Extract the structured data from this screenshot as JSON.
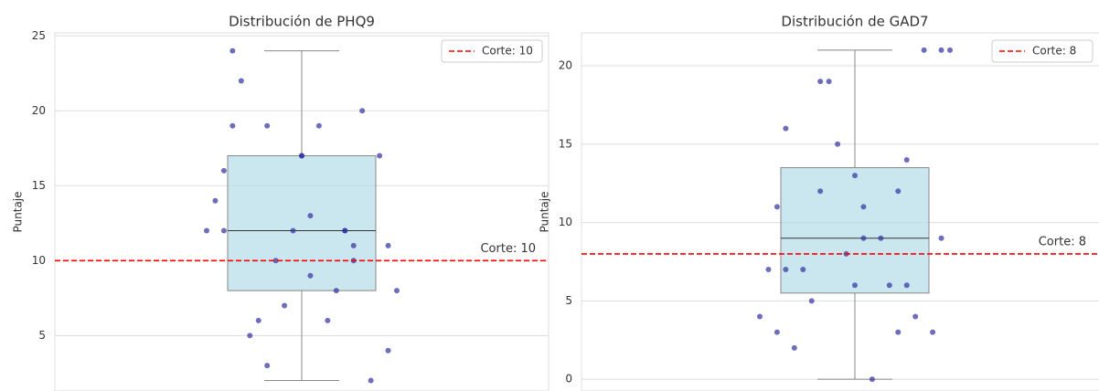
{
  "chart_data": [
    {
      "type": "box",
      "title": "Distribución de PHQ9",
      "ylabel": "Puntaje",
      "box": {
        "whislo": 2,
        "q1": 8,
        "med": 12,
        "q3": 17,
        "whishi": 24
      },
      "points": [
        17,
        12,
        12,
        19,
        11,
        9,
        19,
        10,
        10,
        8,
        19,
        22,
        20,
        7,
        12,
        6,
        5,
        2,
        12,
        14,
        8,
        6,
        17,
        17,
        16,
        12,
        3,
        4,
        13,
        24,
        11
      ],
      "box_color": "#add8e6",
      "point_color": "#2f2fa0",
      "cutoff": {
        "value": 10,
        "legend": "Corte: 10",
        "annotation": "Corte: 10",
        "color": "#ff0000"
      },
      "legend_corner": "upper right",
      "ylim": [
        1.3,
        25.2
      ],
      "yticks": [
        5,
        10,
        15,
        20,
        25
      ],
      "grid": true
    },
    {
      "type": "box",
      "title": "Distribución de GAD7",
      "ylabel": "Puntaje",
      "box": {
        "whislo": 0,
        "q1": 5.5,
        "med": 9,
        "q3": 13.5,
        "whishi": 21
      },
      "points": [
        13,
        11,
        12,
        12,
        9,
        9,
        16,
        14,
        19,
        21,
        0,
        2,
        4,
        15,
        4,
        9,
        7,
        21,
        8,
        7,
        6,
        5,
        3,
        6,
        3,
        3,
        19,
        21,
        11,
        7,
        6
      ],
      "box_color": "#add8e6",
      "point_color": "#2f2fa0",
      "cutoff": {
        "value": 8,
        "legend": "Corte: 8",
        "annotation": "Corte: 8",
        "color": "#ff0000"
      },
      "legend_corner": "upper right",
      "ylim": [
        -0.75,
        22.1
      ],
      "yticks": [
        0,
        5,
        10,
        15,
        20
      ],
      "grid": true
    }
  ]
}
